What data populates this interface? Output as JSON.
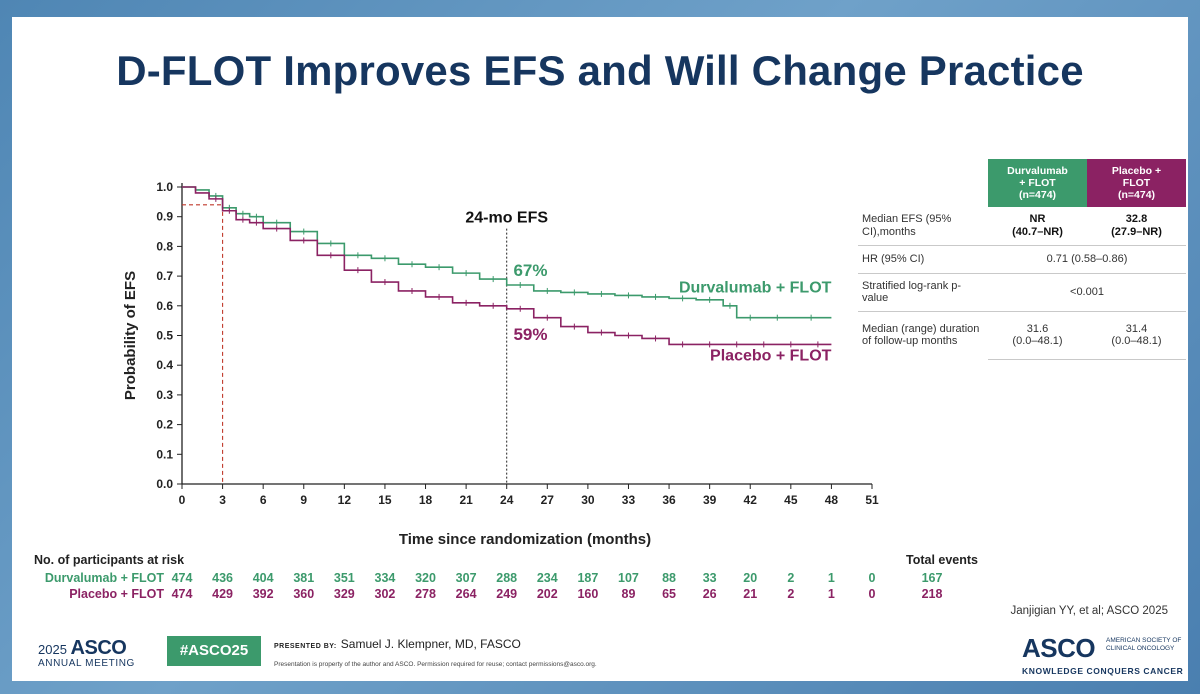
{
  "slide": {
    "title": "D-FLOT Improves EFS and Will Change Practice",
    "reference": "Janjigian YY, et al; ASCO 2025"
  },
  "colors": {
    "durvalumab": "#3c9a6c",
    "placebo": "#8b2263",
    "title": "#16365f",
    "guide": "#c0392b"
  },
  "chart_data": {
    "type": "line",
    "xlabel": "Time since randomization (months)",
    "ylabel": "Probability of EFS",
    "xlim": [
      0,
      51
    ],
    "ylim": [
      0,
      1.0
    ],
    "x_ticks": [
      0,
      3,
      6,
      9,
      12,
      15,
      18,
      21,
      24,
      27,
      30,
      33,
      36,
      39,
      42,
      45,
      48,
      51
    ],
    "y_ticks": [
      "0.0",
      "0.1",
      "0.2",
      "0.3",
      "0.4",
      "0.5",
      "0.6",
      "0.7",
      "0.8",
      "0.9",
      "1.0"
    ],
    "annotation_title": "24-mo EFS",
    "annotation_x": 24,
    "landmark_x": 3,
    "landmark_y": 0.94,
    "series": [
      {
        "name": "Durvalumab + FLOT",
        "label_pct": "67%",
        "x": [
          0,
          1,
          2,
          3,
          4,
          5,
          6,
          8,
          10,
          12,
          14,
          16,
          18,
          20,
          22,
          24,
          26,
          28,
          30,
          32,
          34,
          36,
          38,
          40,
          41,
          43,
          45,
          48
        ],
        "y": [
          1.0,
          0.99,
          0.97,
          0.93,
          0.91,
          0.9,
          0.88,
          0.85,
          0.81,
          0.77,
          0.76,
          0.74,
          0.73,
          0.71,
          0.69,
          0.67,
          0.65,
          0.645,
          0.64,
          0.635,
          0.63,
          0.625,
          0.62,
          0.6,
          0.56,
          0.56,
          0.56,
          0.56
        ]
      },
      {
        "name": "Placebo + FLOT",
        "label_pct": "59%",
        "x": [
          0,
          1,
          2,
          3,
          4,
          5,
          6,
          8,
          10,
          12,
          14,
          16,
          18,
          20,
          22,
          24,
          26,
          28,
          30,
          32,
          34,
          36,
          38,
          40,
          42,
          44,
          46,
          48
        ],
        "y": [
          1.0,
          0.98,
          0.96,
          0.92,
          0.89,
          0.88,
          0.86,
          0.82,
          0.77,
          0.72,
          0.68,
          0.65,
          0.63,
          0.61,
          0.6,
          0.59,
          0.56,
          0.53,
          0.51,
          0.5,
          0.49,
          0.47,
          0.47,
          0.47,
          0.47,
          0.47,
          0.47,
          0.47
        ]
      }
    ]
  },
  "risk_table": {
    "heading": "No. of participants at risk",
    "total_heading": "Total events",
    "rows": [
      {
        "label": "Durvalumab + FLOT",
        "values": [
          "474",
          "436",
          "404",
          "381",
          "351",
          "334",
          "320",
          "307",
          "288",
          "234",
          "187",
          "107",
          "88",
          "33",
          "20",
          "2",
          "1",
          "0"
        ],
        "total": "167"
      },
      {
        "label": "Placebo + FLOT",
        "values": [
          "474",
          "429",
          "392",
          "360",
          "329",
          "302",
          "278",
          "264",
          "249",
          "202",
          "160",
          "89",
          "65",
          "26",
          "21",
          "2",
          "1",
          "0"
        ],
        "total": "218"
      }
    ]
  },
  "efs_table": {
    "col1": {
      "l1": "Durvalumab",
      "l2": "+ FLOT",
      "l3": "(n=474)"
    },
    "col2": {
      "l1": "Placebo +",
      "l2": "FLOT",
      "l3": "(n=474)"
    },
    "rows": [
      {
        "label": "Median EFS (95% CI),months",
        "v1": "NR",
        "v1b": "(40.7–NR)",
        "v2": "32.8",
        "v2b": "(27.9–NR)"
      },
      {
        "label": "HR (95% CI)",
        "merged": "0.71 (0.58–0.86)"
      },
      {
        "label": "Stratified log-rank p-value",
        "merged": "<0.001"
      },
      {
        "label": "Median (range) duration of follow-up months",
        "v1": "31.6",
        "v1b": "(0.0–48.1)",
        "v2": "31.4",
        "v2b": "(0.0–48.1)"
      }
    ]
  },
  "footer": {
    "year": "2025",
    "asco": "ASCO",
    "meeting": "ANNUAL MEETING",
    "hashtag": "#ASCO25",
    "presented_label": "PRESENTED BY:",
    "presenter": "Samuel J. Klempner, MD, FASCO",
    "property_note": "Presentation is property of the author and ASCO. Permission required for reuse; contact permissions@asco.org.",
    "logo": "ASCO",
    "logo_sub1": "AMERICAN SOCIETY OF",
    "logo_sub2": "CLINICAL ONCOLOGY",
    "motto": "KNOWLEDGE CONQUERS CANCER"
  }
}
